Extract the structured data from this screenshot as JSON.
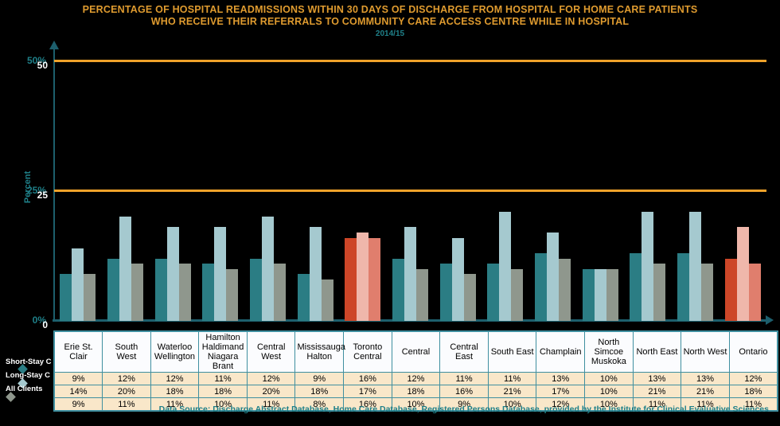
{
  "title": {
    "line1": "PERCENTAGE OF HOSPITAL READMISSIONS WITHIN 30 DAYS OF DISCHARGE FROM HOSPITAL FOR HOME CARE PATIENTS",
    "line2": "WHO RECEIVE THEIR REFERRALS TO COMMUNITY CARE ACCESS CENTRE WHILE IN HOSPITAL",
    "subtitle": "2014/15"
  },
  "chart_data": {
    "type": "bar",
    "title": "Percentage of hospital readmissions within 30 days of discharge, 2014/15",
    "ylabel": "Percent",
    "ylim": [
      0,
      55
    ],
    "grid": "off",
    "legend_position": "bottom-left",
    "categories": [
      "Erie St. Clair",
      "South West",
      "Waterloo Wellington",
      "Hamilton Haldimand Niagara Brant",
      "Central West",
      "Mississauga Halton",
      "Toronto Central",
      "Central",
      "Central East",
      "South East",
      "Champlain",
      "North Simcoe Muskoka",
      "North East",
      "North West",
      "Ontario"
    ],
    "series": [
      {
        "name": "Short-Stay C",
        "values": [
          9,
          12,
          12,
          11,
          12,
          9,
          16,
          12,
          11,
          11,
          13,
          10,
          13,
          13,
          12
        ]
      },
      {
        "name": "Long-Stay C",
        "values": [
          14,
          20,
          18,
          18,
          20,
          18,
          17,
          18,
          16,
          21,
          17,
          10,
          21,
          21,
          18
        ]
      },
      {
        "name": "All Clients",
        "values": [
          9,
          11,
          11,
          10,
          11,
          8,
          16,
          10,
          9,
          10,
          12,
          10,
          11,
          11,
          11
        ]
      }
    ],
    "value_suffix": "%",
    "highlighted_categories": [
      "Toronto Central",
      "Ontario"
    ],
    "reference_lines": [
      50,
      25
    ],
    "yticks": [
      {
        "value": 50,
        "percent_label": "50%",
        "plain_label": "50"
      },
      {
        "value": 25,
        "percent_label": "25%",
        "plain_label": "25"
      },
      {
        "value": 0,
        "percent_label": "0%",
        "plain_label": "0"
      }
    ]
  },
  "footer": {
    "data_source": "Data Source: Discharge Abstract Database, Home Care Database, Registered Persons Database, provided by the Institute for Clinical Evaluative Sciences"
  },
  "colors": {
    "background": "#000000",
    "title_text": "#df9b2f",
    "teal_text": "#1f8089",
    "axis": "#1d5f6d",
    "reference_line": "#efa22a",
    "series_normal": [
      "#2b7d84",
      "#a5c9cf",
      "#8f978d"
    ],
    "series_highlight": [
      "#cd4628",
      "#efb7ab",
      "#e07e6d"
    ],
    "tick_plain_text": "#ffffff",
    "table_border": "#3f8fa0",
    "table_header_bg": "#fbfcfe",
    "table_row_bg": "#f9e7c9",
    "table_text": "#000000"
  }
}
